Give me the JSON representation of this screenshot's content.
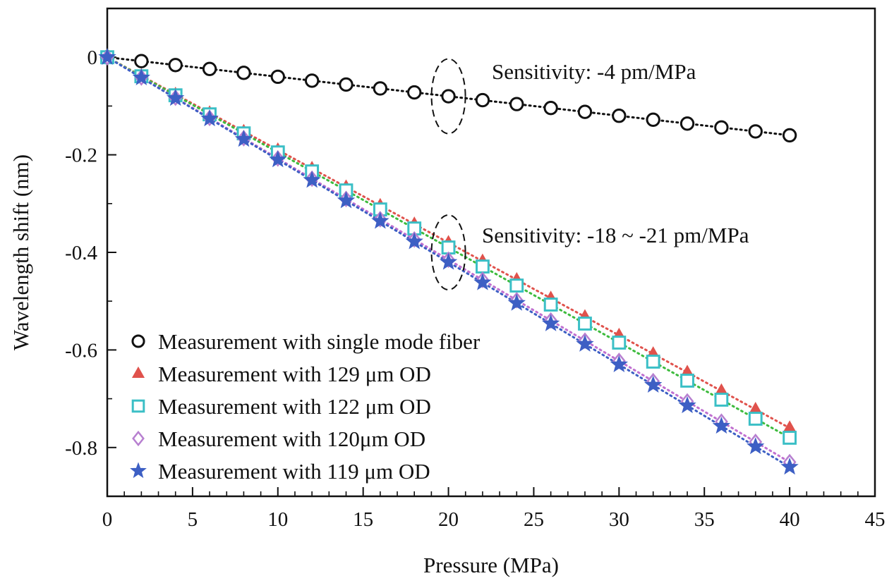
{
  "chart_data": {
    "type": "scatter",
    "xlabel": "Pressure (MPa)",
    "ylabel": "Wavelength shift (nm)",
    "xlim": [
      0,
      45
    ],
    "ylim": [
      -0.9,
      0.1
    ],
    "x_ticks": [
      0,
      5,
      10,
      15,
      20,
      25,
      30,
      35,
      40,
      45
    ],
    "x_tick_labels": [
      "0",
      "5",
      "10",
      "15",
      "20",
      "25",
      "30",
      "35",
      "40",
      "45"
    ],
    "y_ticks": [
      0,
      -0.2,
      -0.4,
      -0.6,
      -0.8
    ],
    "y_tick_labels": [
      "0",
      "-0.2",
      "-0.4",
      "-0.6",
      "-0.8"
    ],
    "grid": false,
    "legend_position": "bottom-left",
    "x": [
      0,
      2,
      4,
      6,
      8,
      10,
      12,
      14,
      16,
      18,
      20,
      22,
      24,
      26,
      28,
      30,
      32,
      34,
      36,
      38,
      40
    ],
    "series": [
      {
        "name": "Measurement with single mode fiber",
        "marker": "circle",
        "color": "#111111",
        "fit_color": "#111111",
        "values": [
          0,
          -0.008,
          -0.016,
          -0.024,
          -0.032,
          -0.04,
          -0.048,
          -0.056,
          -0.064,
          -0.072,
          -0.08,
          -0.088,
          -0.096,
          -0.104,
          -0.112,
          -0.12,
          -0.128,
          -0.136,
          -0.144,
          -0.152,
          -0.16
        ]
      },
      {
        "name": "Measurement with 129 μm OD",
        "marker": "triangle",
        "color": "#e0524c",
        "fit_color": "#e0524c",
        "values": [
          0,
          -0.038,
          -0.076,
          -0.114,
          -0.152,
          -0.19,
          -0.228,
          -0.266,
          -0.304,
          -0.342,
          -0.38,
          -0.418,
          -0.456,
          -0.494,
          -0.532,
          -0.57,
          -0.608,
          -0.646,
          -0.684,
          -0.722,
          -0.76
        ]
      },
      {
        "name": "Measurement with 122 μm OD",
        "marker": "square",
        "color": "#3bbfc6",
        "fit_color": "#3dbb3d",
        "values": [
          0,
          -0.039,
          -0.078,
          -0.117,
          -0.156,
          -0.195,
          -0.234,
          -0.273,
          -0.312,
          -0.351,
          -0.39,
          -0.429,
          -0.468,
          -0.507,
          -0.546,
          -0.585,
          -0.624,
          -0.663,
          -0.702,
          -0.741,
          -0.78
        ]
      },
      {
        "name": "Measurement with 120μm OD",
        "marker": "diamond",
        "color": "#b77fd0",
        "fit_color": "#c070d0",
        "values": [
          0,
          -0.0415,
          -0.083,
          -0.1245,
          -0.166,
          -0.2075,
          -0.249,
          -0.2905,
          -0.332,
          -0.3735,
          -0.415,
          -0.4565,
          -0.498,
          -0.5395,
          -0.581,
          -0.6225,
          -0.664,
          -0.7055,
          -0.747,
          -0.7885,
          -0.83
        ]
      },
      {
        "name": "Measurement with 119 μm OD",
        "marker": "star",
        "color": "#3d5fc4",
        "fit_color": "#3d5fc4",
        "values": [
          0,
          -0.042,
          -0.084,
          -0.126,
          -0.168,
          -0.21,
          -0.252,
          -0.294,
          -0.336,
          -0.378,
          -0.42,
          -0.462,
          -0.504,
          -0.546,
          -0.588,
          -0.63,
          -0.672,
          -0.714,
          -0.756,
          -0.798,
          -0.84
        ]
      }
    ],
    "annotations": [
      {
        "text": "Sensitivity: -4 pm/MPa",
        "x": 20,
        "y": -0.08
      },
      {
        "text": "Sensitivity: -18 ~ -21 pm/MPa",
        "x": 20,
        "y": -0.4
      }
    ]
  }
}
